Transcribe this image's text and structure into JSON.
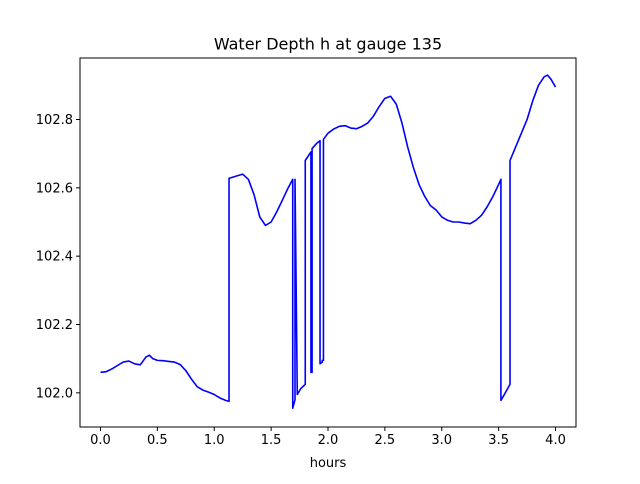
{
  "chart_data": {
    "type": "line",
    "title": "Water Depth h at gauge 135",
    "xlabel": "hours",
    "ylabel": "",
    "xlim": [
      -0.18,
      4.18
    ],
    "ylim": [
      101.9,
      102.98
    ],
    "xticks": [
      0.0,
      0.5,
      1.0,
      1.5,
      2.0,
      2.5,
      3.0,
      3.5,
      4.0
    ],
    "xtick_labels": [
      "0.0",
      "0.5",
      "1.0",
      "1.5",
      "2.0",
      "2.5",
      "3.0",
      "3.5",
      "4.0"
    ],
    "yticks": [
      102.0,
      102.2,
      102.4,
      102.6,
      102.8
    ],
    "ytick_labels": [
      "102.0",
      "102.2",
      "102.4",
      "102.6",
      "102.8"
    ],
    "grid": false,
    "series": [
      {
        "color": "#0000ff",
        "x": [
          0.0,
          0.05,
          0.1,
          0.15,
          0.2,
          0.25,
          0.3,
          0.35,
          0.4,
          0.43,
          0.46,
          0.5,
          0.55,
          0.6,
          0.65,
          0.7,
          0.75,
          0.8,
          0.85,
          0.9,
          0.95,
          1.0,
          1.05,
          1.1,
          1.13,
          1.13,
          1.15,
          1.2,
          1.25,
          1.3,
          1.35,
          1.4,
          1.45,
          1.5,
          1.55,
          1.6,
          1.65,
          1.69,
          1.69,
          1.71,
          1.71,
          1.73,
          1.76,
          1.8,
          1.8,
          1.85,
          1.85,
          1.86,
          1.86,
          1.9,
          1.93,
          1.93,
          1.95,
          1.95,
          1.96,
          1.96,
          2.0,
          2.05,
          2.1,
          2.15,
          2.2,
          2.25,
          2.3,
          2.35,
          2.4,
          2.45,
          2.5,
          2.55,
          2.6,
          2.65,
          2.7,
          2.75,
          2.8,
          2.85,
          2.9,
          2.95,
          3.0,
          3.05,
          3.1,
          3.15,
          3.2,
          3.25,
          3.3,
          3.35,
          3.4,
          3.45,
          3.5,
          3.52,
          3.52,
          3.55,
          3.6,
          3.6,
          3.65,
          3.7,
          3.75,
          3.8,
          3.85,
          3.9,
          3.93,
          3.96,
          4.0
        ],
        "y": [
          102.06,
          102.062,
          102.07,
          102.08,
          102.09,
          102.093,
          102.085,
          102.082,
          102.105,
          102.11,
          102.1,
          102.095,
          102.094,
          102.092,
          102.09,
          102.083,
          102.065,
          102.04,
          102.018,
          102.008,
          102.002,
          101.995,
          101.985,
          101.978,
          101.975,
          102.628,
          102.63,
          102.635,
          102.64,
          102.625,
          102.58,
          102.515,
          102.49,
          102.5,
          102.53,
          102.565,
          102.6,
          102.625,
          101.955,
          101.98,
          102.625,
          101.995,
          102.012,
          102.025,
          102.68,
          102.705,
          102.06,
          102.06,
          102.715,
          102.73,
          102.738,
          102.085,
          102.09,
          102.095,
          102.095,
          102.742,
          102.76,
          102.772,
          102.78,
          102.782,
          102.775,
          102.773,
          102.78,
          102.79,
          102.81,
          102.838,
          102.862,
          102.868,
          102.845,
          102.79,
          102.72,
          102.66,
          102.61,
          102.575,
          102.548,
          102.535,
          102.515,
          102.505,
          102.5,
          102.5,
          102.497,
          102.495,
          102.505,
          102.52,
          102.545,
          102.575,
          102.61,
          102.625,
          101.978,
          101.995,
          102.025,
          102.68,
          102.72,
          102.76,
          102.8,
          102.855,
          102.9,
          102.925,
          102.93,
          102.918,
          102.895
        ]
      }
    ]
  }
}
